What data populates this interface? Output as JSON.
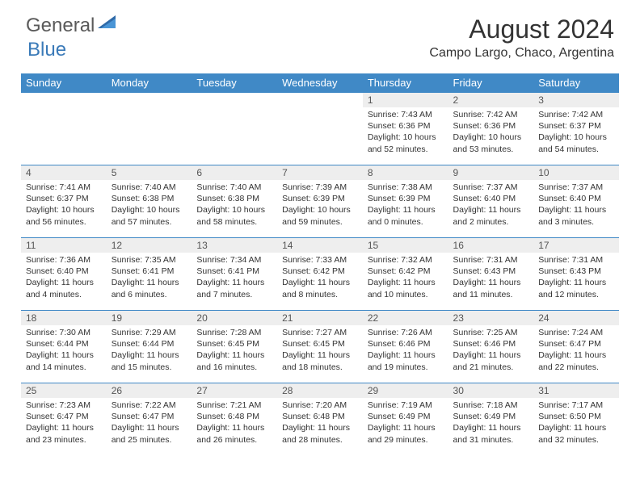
{
  "brand": {
    "part1": "General",
    "part2": "Blue"
  },
  "title": "August 2024",
  "location": "Campo Largo, Chaco, Argentina",
  "colors": {
    "header_bg": "#4089c6",
    "header_text": "#ffffff",
    "daynum_bg": "#eeeeee",
    "border": "#4089c6",
    "text": "#333333",
    "logo_gray": "#5a5a5a",
    "logo_blue": "#3a7ab8"
  },
  "weekdays": [
    "Sunday",
    "Monday",
    "Tuesday",
    "Wednesday",
    "Thursday",
    "Friday",
    "Saturday"
  ],
  "weeks": [
    [
      null,
      null,
      null,
      null,
      {
        "n": "1",
        "sr": "7:43 AM",
        "ss": "6:36 PM",
        "dl": "10 hours and 52 minutes."
      },
      {
        "n": "2",
        "sr": "7:42 AM",
        "ss": "6:36 PM",
        "dl": "10 hours and 53 minutes."
      },
      {
        "n": "3",
        "sr": "7:42 AM",
        "ss": "6:37 PM",
        "dl": "10 hours and 54 minutes."
      }
    ],
    [
      {
        "n": "4",
        "sr": "7:41 AM",
        "ss": "6:37 PM",
        "dl": "10 hours and 56 minutes."
      },
      {
        "n": "5",
        "sr": "7:40 AM",
        "ss": "6:38 PM",
        "dl": "10 hours and 57 minutes."
      },
      {
        "n": "6",
        "sr": "7:40 AM",
        "ss": "6:38 PM",
        "dl": "10 hours and 58 minutes."
      },
      {
        "n": "7",
        "sr": "7:39 AM",
        "ss": "6:39 PM",
        "dl": "10 hours and 59 minutes."
      },
      {
        "n": "8",
        "sr": "7:38 AM",
        "ss": "6:39 PM",
        "dl": "11 hours and 0 minutes."
      },
      {
        "n": "9",
        "sr": "7:37 AM",
        "ss": "6:40 PM",
        "dl": "11 hours and 2 minutes."
      },
      {
        "n": "10",
        "sr": "7:37 AM",
        "ss": "6:40 PM",
        "dl": "11 hours and 3 minutes."
      }
    ],
    [
      {
        "n": "11",
        "sr": "7:36 AM",
        "ss": "6:40 PM",
        "dl": "11 hours and 4 minutes."
      },
      {
        "n": "12",
        "sr": "7:35 AM",
        "ss": "6:41 PM",
        "dl": "11 hours and 6 minutes."
      },
      {
        "n": "13",
        "sr": "7:34 AM",
        "ss": "6:41 PM",
        "dl": "11 hours and 7 minutes."
      },
      {
        "n": "14",
        "sr": "7:33 AM",
        "ss": "6:42 PM",
        "dl": "11 hours and 8 minutes."
      },
      {
        "n": "15",
        "sr": "7:32 AM",
        "ss": "6:42 PM",
        "dl": "11 hours and 10 minutes."
      },
      {
        "n": "16",
        "sr": "7:31 AM",
        "ss": "6:43 PM",
        "dl": "11 hours and 11 minutes."
      },
      {
        "n": "17",
        "sr": "7:31 AM",
        "ss": "6:43 PM",
        "dl": "11 hours and 12 minutes."
      }
    ],
    [
      {
        "n": "18",
        "sr": "7:30 AM",
        "ss": "6:44 PM",
        "dl": "11 hours and 14 minutes."
      },
      {
        "n": "19",
        "sr": "7:29 AM",
        "ss": "6:44 PM",
        "dl": "11 hours and 15 minutes."
      },
      {
        "n": "20",
        "sr": "7:28 AM",
        "ss": "6:45 PM",
        "dl": "11 hours and 16 minutes."
      },
      {
        "n": "21",
        "sr": "7:27 AM",
        "ss": "6:45 PM",
        "dl": "11 hours and 18 minutes."
      },
      {
        "n": "22",
        "sr": "7:26 AM",
        "ss": "6:46 PM",
        "dl": "11 hours and 19 minutes."
      },
      {
        "n": "23",
        "sr": "7:25 AM",
        "ss": "6:46 PM",
        "dl": "11 hours and 21 minutes."
      },
      {
        "n": "24",
        "sr": "7:24 AM",
        "ss": "6:47 PM",
        "dl": "11 hours and 22 minutes."
      }
    ],
    [
      {
        "n": "25",
        "sr": "7:23 AM",
        "ss": "6:47 PM",
        "dl": "11 hours and 23 minutes."
      },
      {
        "n": "26",
        "sr": "7:22 AM",
        "ss": "6:47 PM",
        "dl": "11 hours and 25 minutes."
      },
      {
        "n": "27",
        "sr": "7:21 AM",
        "ss": "6:48 PM",
        "dl": "11 hours and 26 minutes."
      },
      {
        "n": "28",
        "sr": "7:20 AM",
        "ss": "6:48 PM",
        "dl": "11 hours and 28 minutes."
      },
      {
        "n": "29",
        "sr": "7:19 AM",
        "ss": "6:49 PM",
        "dl": "11 hours and 29 minutes."
      },
      {
        "n": "30",
        "sr": "7:18 AM",
        "ss": "6:49 PM",
        "dl": "11 hours and 31 minutes."
      },
      {
        "n": "31",
        "sr": "7:17 AM",
        "ss": "6:50 PM",
        "dl": "11 hours and 32 minutes."
      }
    ]
  ],
  "labels": {
    "sunrise": "Sunrise:",
    "sunset": "Sunset:",
    "daylight": "Daylight:"
  }
}
